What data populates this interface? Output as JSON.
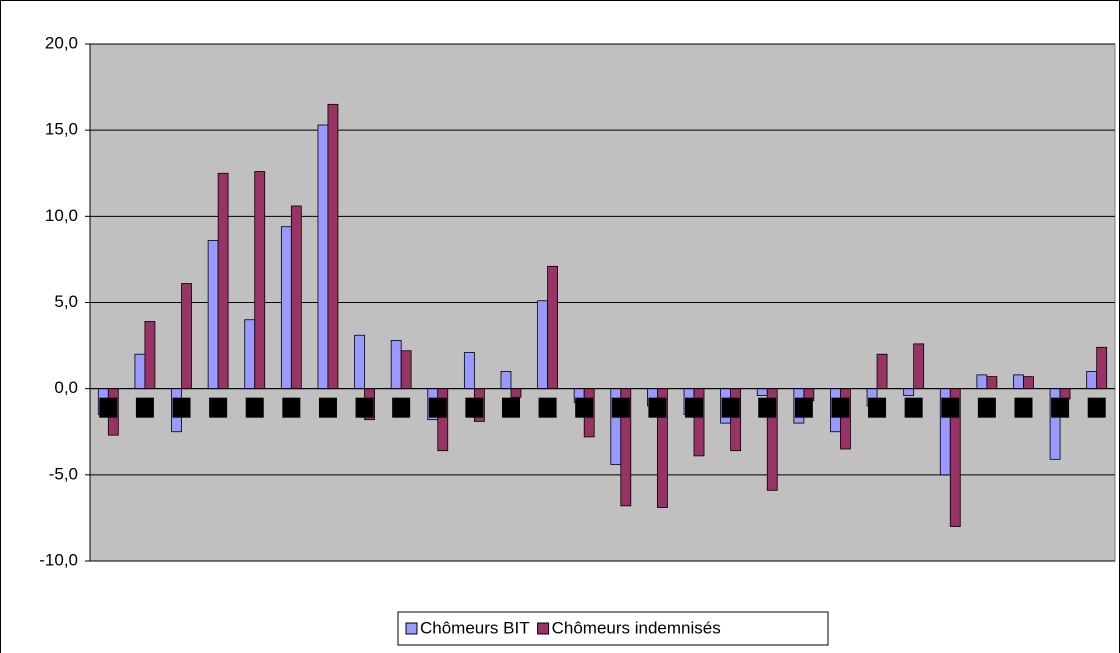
{
  "chart_data": {
    "type": "bar",
    "categories": [
      null,
      null,
      null,
      null,
      null,
      null,
      null,
      null,
      null,
      null,
      null,
      null,
      null,
      null,
      null,
      null,
      null,
      null,
      null,
      null,
      null,
      null,
      null,
      null,
      null,
      null,
      null,
      null
    ],
    "series": [
      {
        "name": "Chômeurs BIT",
        "color": "#9999ff",
        "values": [
          -1.5,
          2.0,
          -2.5,
          8.6,
          4.0,
          9.4,
          15.3,
          3.1,
          2.8,
          -1.8,
          2.1,
          1.0,
          5.1,
          -0.8,
          -4.4,
          -1.0,
          -1.5,
          -2.0,
          -0.4,
          -2.0,
          -2.5,
          -1.0,
          -0.4,
          -5.0,
          0.8,
          0.8,
          -4.1,
          1.0
        ]
      },
      {
        "name": "Chômeurs indemnisés",
        "color": "#993366",
        "values": [
          -2.7,
          3.9,
          6.1,
          12.5,
          12.6,
          10.6,
          16.5,
          -1.8,
          2.2,
          -3.6,
          -1.9,
          -0.5,
          7.1,
          -2.8,
          -6.8,
          -6.9,
          -3.9,
          -3.6,
          -5.9,
          -0.7,
          -3.5,
          2.0,
          2.6,
          -8.0,
          0.7,
          0.7,
          -0.6,
          2.4
        ]
      }
    ],
    "ylim": [
      -10,
      20
    ],
    "yticks": [
      {
        "value": -10,
        "label": "-10,0"
      },
      {
        "value": -5,
        "label": "-5,0"
      },
      {
        "value": 0,
        "label": "0,0"
      },
      {
        "value": 5,
        "label": "5,0"
      },
      {
        "value": 10,
        "label": "10,0"
      },
      {
        "value": 15,
        "label": "15,0"
      },
      {
        "value": 20,
        "label": "20,0"
      }
    ],
    "grid": true,
    "legend": "bottom"
  }
}
